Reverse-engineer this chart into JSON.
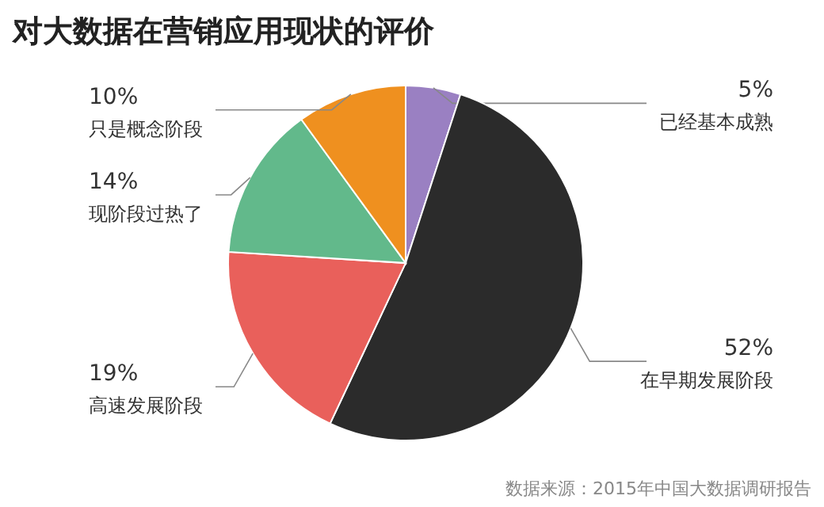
{
  "chart_data": {
    "type": "pie",
    "title": "对大数据在营销应用现状的评价",
    "categories": [
      "已经基本成熟",
      "在早期发展阶段",
      "高速发展阶段",
      "现阶段过热了",
      "只是概念阶段"
    ],
    "values": [
      5,
      52,
      19,
      14,
      10
    ],
    "value_labels": [
      "5%",
      "52%",
      "19%",
      "14%",
      "10%"
    ],
    "colors": [
      "#9a80c2",
      "#2b2b2b",
      "#e9605b",
      "#62b98b",
      "#ef901f"
    ],
    "annotations": [
      "数据来源：2015年中国大数据调研报告"
    ]
  }
}
